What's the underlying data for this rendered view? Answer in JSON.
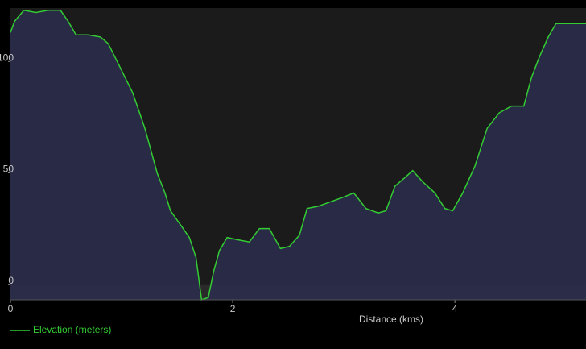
{
  "chart_data": {
    "type": "area",
    "x_label": "Distance (kms)",
    "x": [
      0,
      0.036,
      0.12,
      0.23,
      0.34,
      0.45,
      0.52,
      0.59,
      0.7,
      0.81,
      0.88,
      0.99,
      1.1,
      1.21,
      1.32,
      1.39,
      1.44,
      1.54,
      1.61,
      1.67,
      1.72,
      1.78,
      1.83,
      1.88,
      1.95,
      2.04,
      2.15,
      2.24,
      2.33,
      2.43,
      2.51,
      2.6,
      2.67,
      2.77,
      2.88,
      2.99,
      3.09,
      3.2,
      3.31,
      3.38,
      3.46,
      3.53,
      3.62,
      3.71,
      3.82,
      3.91,
      3.98,
      4.07,
      4.18,
      4.29,
      4.4,
      4.51,
      4.62,
      4.69,
      4.76,
      4.84,
      4.91,
      5.01,
      5.18
    ],
    "series": [
      {
        "name": "Elevation (meters)",
        "color": "#33cc33",
        "fill": "#2c2d4c",
        "values": [
          113,
          118,
          123,
          122,
          123,
          123,
          118,
          112,
          112,
          111,
          108,
          97,
          86,
          70,
          50,
          41,
          33,
          26,
          21,
          12,
          -7,
          -6,
          6,
          15,
          21,
          20,
          19,
          25,
          25,
          16,
          17,
          22,
          34,
          35,
          37,
          39,
          41,
          34,
          32,
          33,
          44,
          47,
          51,
          46,
          41,
          34,
          33,
          41,
          53,
          70,
          77,
          80,
          80,
          93,
          102,
          111,
          117,
          117,
          117
        ]
      }
    ],
    "xlim": [
      0,
      5.18
    ],
    "xticks": [
      0,
      2,
      4
    ],
    "ylim": [
      -7,
      124
    ],
    "yticks": [
      0,
      50,
      100
    ],
    "legend": "bottom-left",
    "grid": false
  }
}
